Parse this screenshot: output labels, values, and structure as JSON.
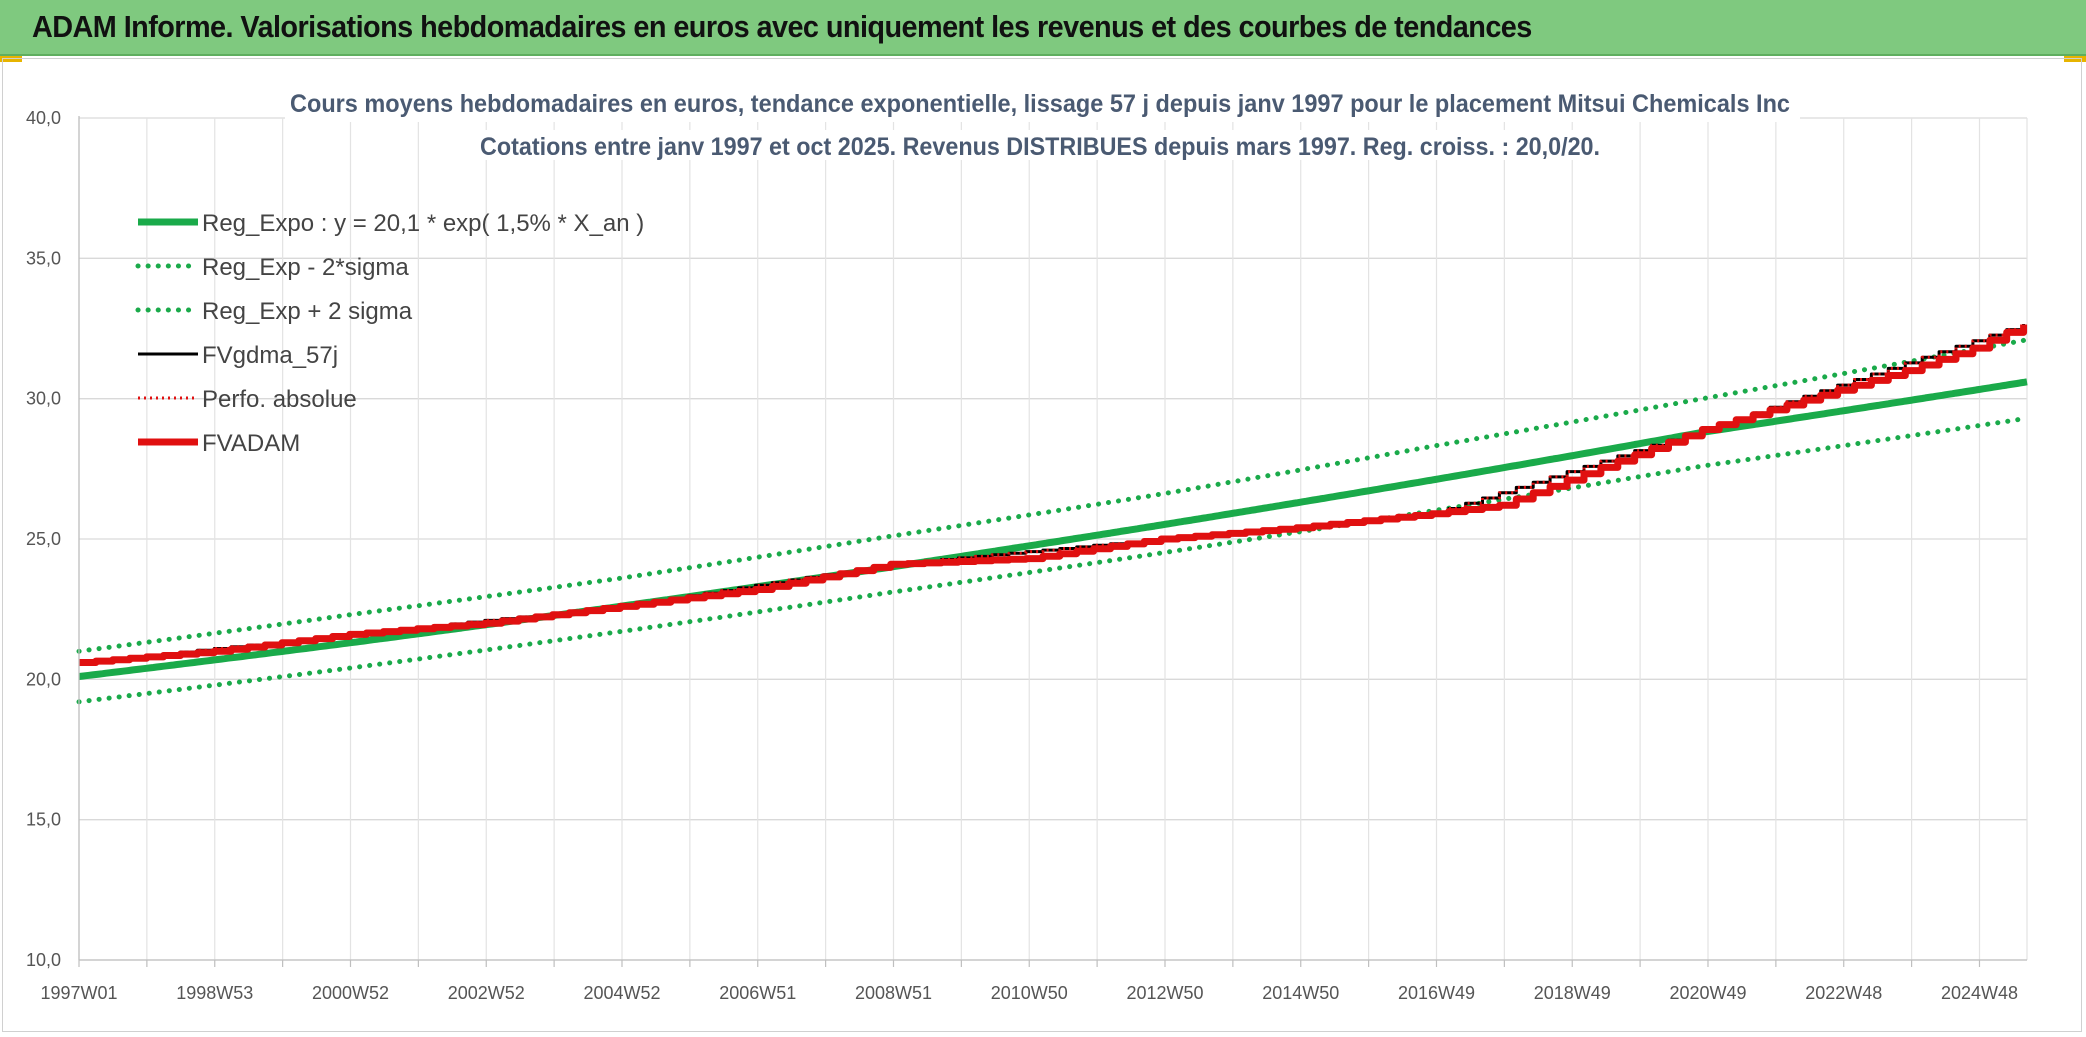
{
  "header": {
    "title": "ADAM Informe. Valorisations hebdomadaires en euros avec uniquement les revenus et des courbes de tendances"
  },
  "chart_data": {
    "type": "line",
    "title_line1": "Cours moyens hebdomadaires en euros, tendance exponentielle, lissage 57 j depuis janv 1997 pour le placement Mitsui Chemicals Inc",
    "title_line2": "Cotations entre janv 1997 et oct 2025. Revenus DISTRIBUES depuis mars 1997. Reg. croiss. : 20,0/20.",
    "x_tick_labels": [
      "1997W01",
      "1998W53",
      "2000W52",
      "2002W52",
      "2004W52",
      "2006W51",
      "2008W51",
      "2010W50",
      "2012W50",
      "2014W50",
      "2016W49",
      "2018W49",
      "2020W49",
      "2022W48",
      "2024W48"
    ],
    "x_range_years": [
      1997.0,
      2025.8
    ],
    "ylim": [
      10,
      40
    ],
    "y_ticks": [
      10,
      15,
      20,
      25,
      30,
      35,
      40
    ],
    "y_tick_labels": [
      "10,0",
      "15,0",
      "20,0",
      "25,0",
      "30,0",
      "35,0",
      "40,0"
    ],
    "grid": true,
    "legend_position": "top-left",
    "series": [
      {
        "name": "Reg_Expo : y = 20,1 * exp( 1,5% *  X_an )",
        "color": "#1aaa4a",
        "style": "solid",
        "x": [
          1997.0,
          2001.0,
          2005.0,
          2009.0,
          2013.0,
          2017.0,
          2021.0,
          2025.8
        ],
        "y": [
          20.1,
          21.3,
          22.6,
          24.0,
          25.5,
          27.1,
          28.8,
          30.6
        ]
      },
      {
        "name": "Reg_Exp - 2*sigma",
        "color": "#1aaa4a",
        "style": "dotted",
        "x": [
          1997.0,
          2001.0,
          2005.0,
          2009.0,
          2013.0,
          2017.0,
          2021.0,
          2025.8
        ],
        "y": [
          19.2,
          20.4,
          21.7,
          23.1,
          24.5,
          26.0,
          27.6,
          29.3
        ]
      },
      {
        "name": "Reg_Exp + 2 sigma",
        "color": "#1aaa4a",
        "style": "dotted",
        "x": [
          1997.0,
          2001.0,
          2005.0,
          2009.0,
          2013.0,
          2017.0,
          2021.0,
          2025.8
        ],
        "y": [
          21.0,
          22.3,
          23.6,
          25.1,
          26.6,
          28.3,
          30.0,
          32.1
        ]
      },
      {
        "name": "FVgdma_57j",
        "color": "#000000",
        "style": "solid",
        "x": [
          1997.0,
          2001.0,
          2005.0,
          2009.0,
          2013.0,
          2017.0,
          2021.0,
          2025.8
        ],
        "y": [
          20.6,
          21.6,
          22.6,
          24.1,
          25.0,
          25.9,
          28.9,
          32.7
        ]
      },
      {
        "name": "Perfo. absolue",
        "color": "#e01010",
        "style": "dotted",
        "x": [
          1997.0,
          2001.0,
          2005.0,
          2009.0,
          2013.0,
          2017.0,
          2021.0,
          2025.8
        ],
        "y": [
          20.6,
          21.6,
          22.6,
          24.1,
          25.0,
          25.9,
          28.9,
          32.7
        ]
      },
      {
        "name": "FVADAM",
        "color": "#e01010",
        "style": "solid",
        "x": [
          1997.0,
          1999.0,
          2001.0,
          2003.0,
          2005.0,
          2007.0,
          2009.0,
          2011.0,
          2013.0,
          2015.0,
          2017.0,
          2018.0,
          2019.0,
          2020.0,
          2021.0,
          2022.0,
          2023.0,
          2024.0,
          2025.0,
          2025.8
        ],
        "y": [
          20.6,
          21.0,
          21.6,
          22.0,
          22.6,
          23.2,
          24.1,
          24.3,
          25.0,
          25.4,
          25.9,
          26.2,
          27.1,
          28.0,
          28.9,
          29.6,
          30.3,
          31.0,
          31.8,
          32.7
        ]
      }
    ]
  }
}
